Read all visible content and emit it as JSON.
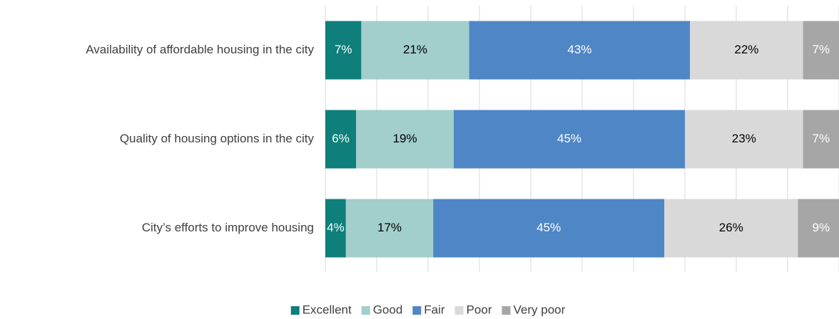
{
  "chart_data": {
    "type": "stacked-barh",
    "categories": [
      "Availability of affordable housing in the city",
      "Quality of housing options in the city",
      "City’s efforts to improve housing"
    ],
    "series": [
      {
        "name": "Excellent",
        "color": "#0e7f7a",
        "values": [
          7,
          6,
          4
        ],
        "value_labels": [
          "7%",
          "6%",
          "4%"
        ]
      },
      {
        "name": "Good",
        "color": "#a2cecc",
        "values": [
          21,
          19,
          17
        ],
        "value_labels": [
          "21%",
          "19%",
          "17%"
        ]
      },
      {
        "name": "Fair",
        "color": "#4f86c6",
        "values": [
          43,
          45,
          45
        ],
        "value_labels": [
          "43%",
          "45%",
          "45%"
        ]
      },
      {
        "name": "Poor",
        "color": "#d9d9d9",
        "values": [
          22,
          23,
          26
        ],
        "value_labels": [
          "22%",
          "23%",
          "26%"
        ]
      },
      {
        "name": "Very poor",
        "color": "#a6a6a6",
        "values": [
          7,
          7,
          9
        ],
        "value_labels": [
          "7%",
          "7%",
          "9%"
        ]
      }
    ],
    "xlim": [
      0,
      100
    ],
    "xticks": [
      0,
      10,
      20,
      30,
      40,
      50,
      60,
      70,
      80,
      90,
      100
    ],
    "grid": true,
    "legend": "bottom"
  }
}
